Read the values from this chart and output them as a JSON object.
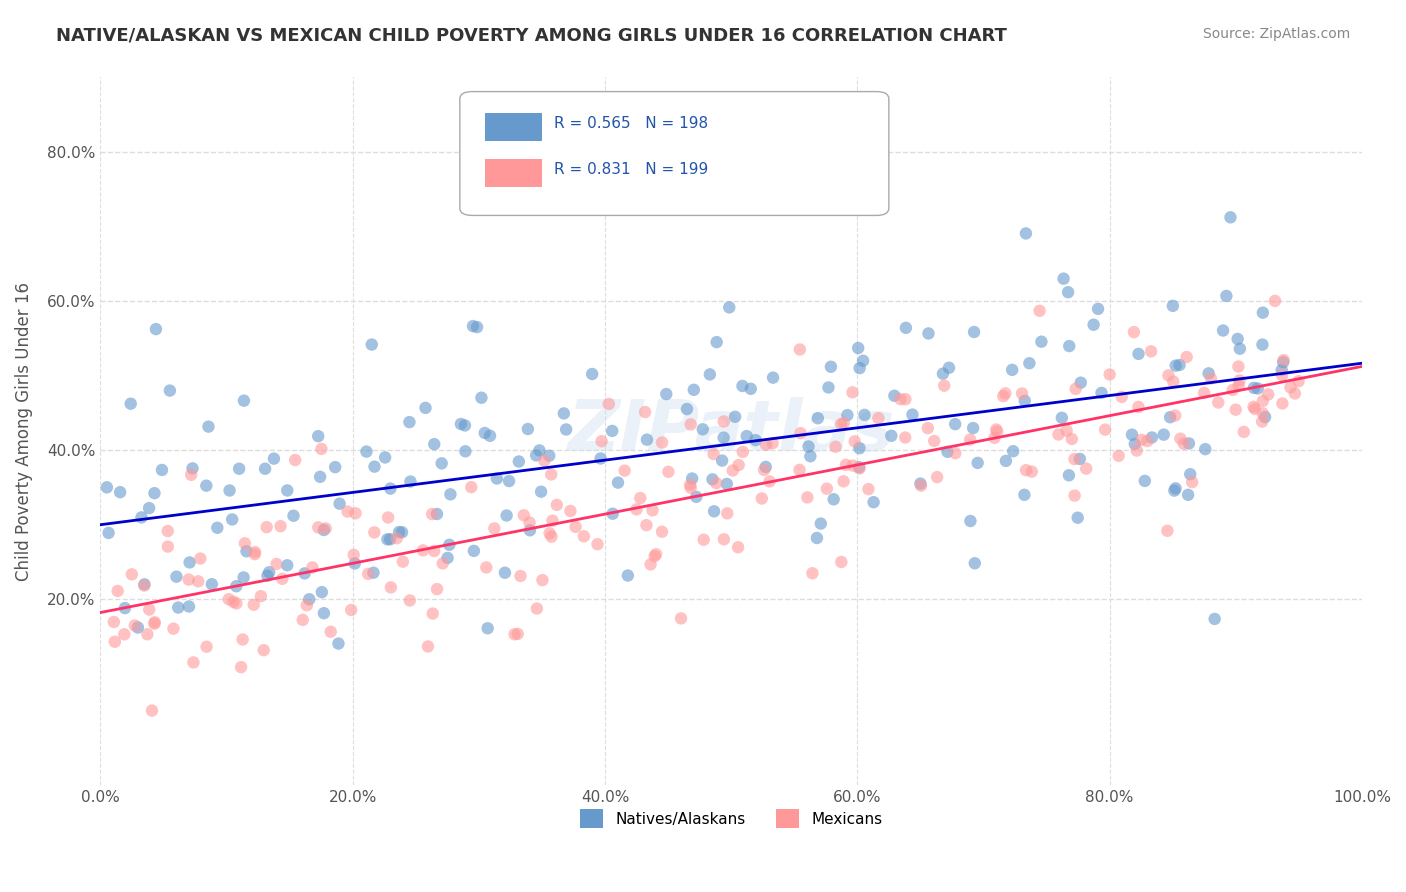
{
  "title": "NATIVE/ALASKAN VS MEXICAN CHILD POVERTY AMONG GIRLS UNDER 16 CORRELATION CHART",
  "source": "Source: ZipAtlas.com",
  "xlabel": "",
  "ylabel": "Child Poverty Among Girls Under 16",
  "xlim": [
    0,
    1
  ],
  "ylim": [
    -0.05,
    0.9
  ],
  "x_ticks": [
    0.0,
    0.2,
    0.4,
    0.6,
    0.8,
    1.0
  ],
  "x_tick_labels": [
    "0.0%",
    "20.0%",
    "40.0%",
    "60.0%",
    "80.0%",
    "100.0%"
  ],
  "y_ticks": [
    0.2,
    0.4,
    0.6,
    0.8
  ],
  "y_tick_labels": [
    "20.0%",
    "40.0%",
    "60.0%",
    "80.0%"
  ],
  "legend_labels": [
    "Natives/Alaskans",
    "Mexicans"
  ],
  "r_native": 0.565,
  "n_native": 198,
  "r_mexican": 0.831,
  "n_mexican": 199,
  "color_native": "#6699CC",
  "color_mexican": "#FF9999",
  "line_color_native": "#0000CC",
  "line_color_mexican": "#FF3366",
  "watermark": "ZIPatlas",
  "background_color": "#FFFFFF",
  "grid_color": "#DDDDDD",
  "title_color": "#333333",
  "source_color": "#888888"
}
